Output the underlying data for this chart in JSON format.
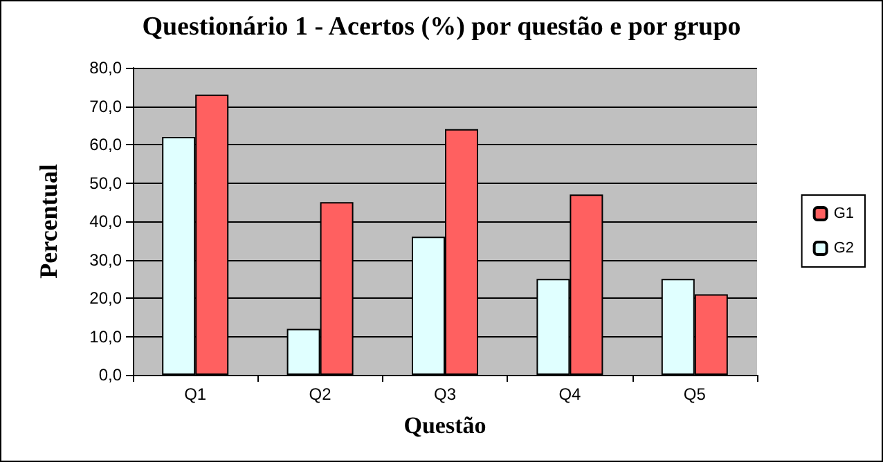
{
  "chart_data": {
    "type": "bar",
    "title": "Questionário 1 - Acertos (%) por questão e por grupo",
    "xlabel": "Questão",
    "ylabel": "Percentual",
    "categories": [
      "Q1",
      "Q2",
      "Q3",
      "Q4",
      "Q5"
    ],
    "series": [
      {
        "name": "G2",
        "color": "#e0ffff",
        "values": [
          62,
          12,
          36,
          25,
          25
        ]
      },
      {
        "name": "G1",
        "color": "#ff6060",
        "values": [
          73,
          45,
          64,
          47,
          21
        ]
      }
    ],
    "ylim": [
      0,
      80
    ],
    "yticks": [
      {
        "value": 0,
        "label": "0,0"
      },
      {
        "value": 10,
        "label": "10,0"
      },
      {
        "value": 20,
        "label": "20,0"
      },
      {
        "value": 30,
        "label": "30,0"
      },
      {
        "value": 40,
        "label": "40,0"
      },
      {
        "value": 50,
        "label": "50,0"
      },
      {
        "value": 60,
        "label": "60,0"
      },
      {
        "value": 70,
        "label": "70,0"
      },
      {
        "value": 80,
        "label": "80,0"
      }
    ],
    "grid": true,
    "legend": "right"
  }
}
